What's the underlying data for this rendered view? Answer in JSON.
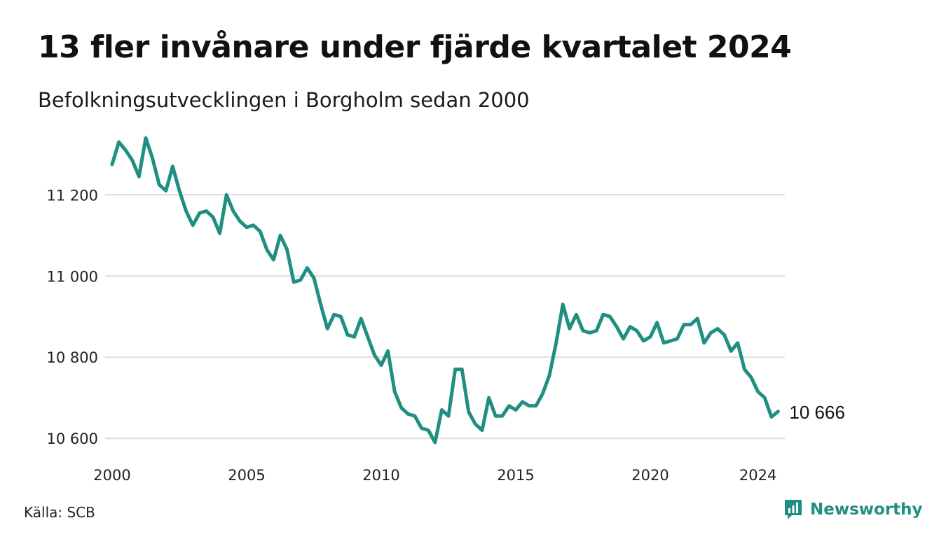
{
  "title": "13 fler invånare under fjärde kvartalet 2024",
  "subtitle": "Befolkningsutvecklingen i Borgholm sedan 2000",
  "source": "Källa: SCB",
  "brand": {
    "name": "Newsworthy",
    "icon": "newsworthy-logo-icon"
  },
  "colors": {
    "line": "#1f8f82",
    "grid": "#dddddd",
    "brand": "#1f8f82"
  },
  "end_label": "10 666",
  "chart_data": {
    "type": "line",
    "title": "13 fler invånare under fjärde kvartalet 2024",
    "subtitle": "Befolkningsutvecklingen i Borgholm sedan 2000",
    "x_start": 2000.0,
    "x_step": 0.25,
    "ylim": [
      10590,
      11335
    ],
    "xlim": [
      2000,
      2025
    ],
    "yticks": [
      10600,
      10800,
      11000,
      11200
    ],
    "ytick_labels": [
      "10 600",
      "10 800",
      "11 000",
      "11 200"
    ],
    "xticks": [
      2000,
      2005,
      2010,
      2015,
      2020,
      2024
    ],
    "xtick_labels": [
      "2000",
      "2005",
      "2010",
      "2015",
      "2020",
      "2024"
    ],
    "grid": true,
    "series": [
      {
        "values": [
          11275,
          11330,
          11310,
          11285,
          11245,
          11340,
          11290,
          11225,
          11210,
          11270,
          11210,
          11160,
          11125,
          11155,
          11160,
          11145,
          11105,
          11200,
          11160,
          11135,
          11120,
          11125,
          11110,
          11065,
          11040,
          11100,
          11065,
          10985,
          10990,
          11020,
          10995,
          10930,
          10870,
          10905,
          10900,
          10855,
          10850,
          10895,
          10850,
          10805,
          10780,
          10815,
          10715,
          10675,
          10660,
          10655,
          10625,
          10620,
          10590,
          10670,
          10655,
          10770,
          10770,
          10665,
          10635,
          10620,
          10700,
          10655,
          10655,
          10680,
          10670,
          10690,
          10680,
          10680,
          10710,
          10755,
          10835,
          10930,
          10870,
          10905,
          10865,
          10860,
          10865,
          10905,
          10900,
          10875,
          10845,
          10875,
          10865,
          10840,
          10850,
          10885,
          10835,
          10840,
          10845,
          10880,
          10880,
          10895,
          10835,
          10860,
          10870,
          10855,
          10815,
          10835,
          10770,
          10750,
          10715,
          10700,
          10653,
          10666
        ]
      }
    ]
  }
}
